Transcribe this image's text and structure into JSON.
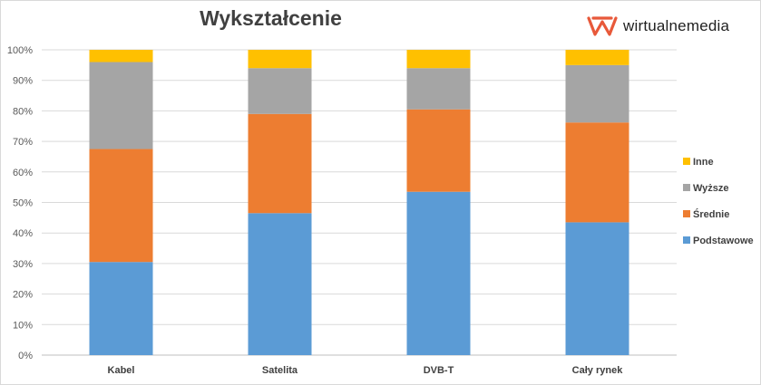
{
  "brand": {
    "name": "wirtualnemedia",
    "accent_color": "#e8593a"
  },
  "chart_data": {
    "type": "bar",
    "stacked": true,
    "title": "Wykształcenie",
    "categories": [
      "Kabel",
      "Satelita",
      "DVB-T",
      "Cały rynek"
    ],
    "series": [
      {
        "name": "Podstawowe",
        "color": "#5b9bd5",
        "values": [
          30.5,
          46.5,
          53.5,
          43.5
        ]
      },
      {
        "name": "Średnie",
        "color": "#ed7d31",
        "values": [
          37.0,
          32.5,
          27.0,
          32.7
        ]
      },
      {
        "name": "Wyższe",
        "color": "#a5a5a5",
        "values": [
          28.5,
          15.0,
          13.5,
          18.8
        ]
      },
      {
        "name": "Inne",
        "color": "#ffc000",
        "values": [
          4.0,
          6.0,
          6.0,
          5.0
        ]
      }
    ],
    "ylim": [
      0,
      100
    ],
    "yticks": [
      "0%",
      "10%",
      "20%",
      "30%",
      "40%",
      "50%",
      "60%",
      "70%",
      "80%",
      "90%",
      "100%"
    ],
    "xlabel": "",
    "ylabel": "",
    "grid": true,
    "legend_position": "right"
  }
}
